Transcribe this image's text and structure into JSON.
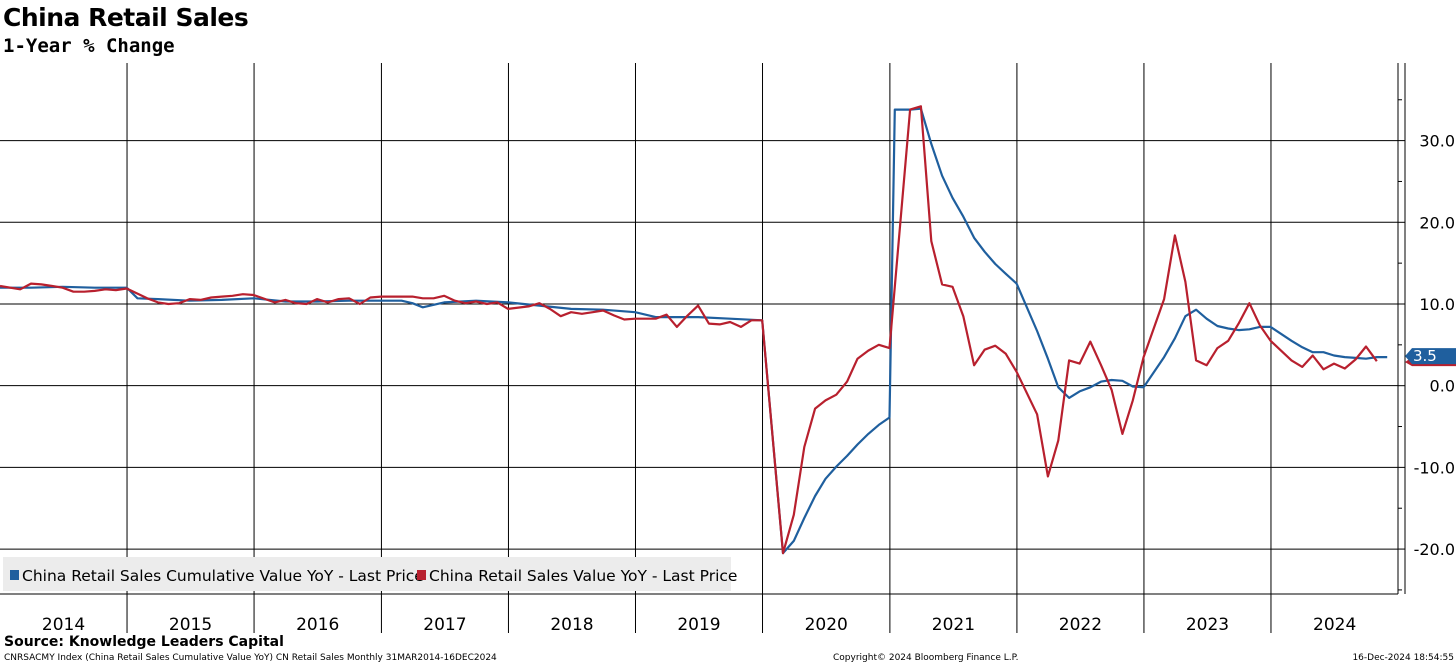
{
  "header": {
    "title": "China Retail Sales",
    "subtitle": "1-Year % Change"
  },
  "footer": {
    "source": "Source: Knowledge Leaders Capital",
    "ticker_line": "CNRSACMY Index (China Retail Sales Cumulative Value YoY) CN Retail Sales  Monthly 31MAR2014-16DEC2024",
    "copyright": "Copyright© 2024 Bloomberg Finance L.P.",
    "timestamp": "16-Dec-2024 18:54:55"
  },
  "colors": {
    "cumulative": "#1f5f9e",
    "monthly": "#b8202e",
    "grid": "#000000",
    "legend_bg": "#ececec"
  },
  "chart_data": {
    "type": "line",
    "x_unit": "date",
    "xlim": [
      "2014-01-01",
      "2024-12-31"
    ],
    "ylim": [
      -25.5,
      39.5
    ],
    "y_ticks": [
      -20,
      -10,
      0,
      10,
      20,
      30
    ],
    "y_tick_labels": [
      "-20.0",
      "-10.0",
      "0.0",
      "10.0",
      "20.0",
      "30.0"
    ],
    "x_tick_labels": [
      "2014",
      "2015",
      "2016",
      "2017",
      "2018",
      "2019",
      "2020",
      "2021",
      "2022",
      "2023",
      "2024"
    ],
    "y_axis_position": "right",
    "grid": true,
    "legend_position": "bottom-left",
    "last_value_label": "3.5",
    "series": [
      {
        "name": "China Retail Sales Cumulative Value YoY - Last Price",
        "color": "#1f5f9e",
        "points": [
          [
            "2014-01-01",
            12.0
          ],
          [
            "2014-03-31",
            12.0
          ],
          [
            "2014-06-30",
            12.1
          ],
          [
            "2014-09-30",
            12.0
          ],
          [
            "2014-12-31",
            12.0
          ],
          [
            "2015-01-31",
            10.7
          ],
          [
            "2015-03-31",
            10.6
          ],
          [
            "2015-06-30",
            10.4
          ],
          [
            "2015-09-30",
            10.5
          ],
          [
            "2015-12-31",
            10.7
          ],
          [
            "2016-03-31",
            10.3
          ],
          [
            "2016-06-30",
            10.3
          ],
          [
            "2016-09-30",
            10.4
          ],
          [
            "2016-12-31",
            10.4
          ],
          [
            "2017-02-28",
            10.4
          ],
          [
            "2017-03-31",
            10.1
          ],
          [
            "2017-04-30",
            9.6
          ],
          [
            "2017-06-30",
            10.2
          ],
          [
            "2017-09-30",
            10.4
          ],
          [
            "2017-12-31",
            10.2
          ],
          [
            "2018-03-31",
            9.8
          ],
          [
            "2018-06-30",
            9.4
          ],
          [
            "2018-09-30",
            9.3
          ],
          [
            "2018-12-31",
            9.0
          ],
          [
            "2019-02-28",
            8.4
          ],
          [
            "2019-06-30",
            8.4
          ],
          [
            "2019-09-30",
            8.2
          ],
          [
            "2019-12-31",
            8.0
          ],
          [
            "2020-02-29",
            -20.5
          ],
          [
            "2020-03-31",
            -19.0
          ],
          [
            "2020-04-30",
            -16.2
          ],
          [
            "2020-05-31",
            -13.5
          ],
          [
            "2020-06-30",
            -11.4
          ],
          [
            "2020-07-31",
            -9.9
          ],
          [
            "2020-08-31",
            -8.6
          ],
          [
            "2020-09-30",
            -7.2
          ],
          [
            "2020-10-31",
            -5.9
          ],
          [
            "2020-11-30",
            -4.8
          ],
          [
            "2020-12-31",
            -3.9
          ],
          [
            "2021-01-15",
            33.8
          ],
          [
            "2021-02-28",
            33.8
          ],
          [
            "2021-03-31",
            33.9
          ],
          [
            "2021-04-30",
            29.6
          ],
          [
            "2021-05-31",
            25.7
          ],
          [
            "2021-06-30",
            23.0
          ],
          [
            "2021-07-31",
            20.7
          ],
          [
            "2021-08-31",
            18.1
          ],
          [
            "2021-09-30",
            16.4
          ],
          [
            "2021-10-31",
            14.9
          ],
          [
            "2021-11-30",
            13.7
          ],
          [
            "2021-12-31",
            12.5
          ],
          [
            "2022-02-28",
            6.7
          ],
          [
            "2022-03-31",
            3.3
          ],
          [
            "2022-04-30",
            -0.2
          ],
          [
            "2022-05-31",
            -1.5
          ],
          [
            "2022-06-30",
            -0.7
          ],
          [
            "2022-07-31",
            -0.2
          ],
          [
            "2022-08-31",
            0.5
          ],
          [
            "2022-09-30",
            0.7
          ],
          [
            "2022-10-31",
            0.6
          ],
          [
            "2022-11-30",
            -0.1
          ],
          [
            "2022-12-31",
            -0.2
          ],
          [
            "2023-02-28",
            3.5
          ],
          [
            "2023-03-31",
            5.8
          ],
          [
            "2023-04-30",
            8.5
          ],
          [
            "2023-05-31",
            9.3
          ],
          [
            "2023-06-30",
            8.2
          ],
          [
            "2023-07-31",
            7.3
          ],
          [
            "2023-08-31",
            7.0
          ],
          [
            "2023-09-30",
            6.8
          ],
          [
            "2023-10-31",
            6.9
          ],
          [
            "2023-11-30",
            7.2
          ],
          [
            "2023-12-31",
            7.2
          ],
          [
            "2024-02-29",
            5.5
          ],
          [
            "2024-03-31",
            4.7
          ],
          [
            "2024-04-30",
            4.1
          ],
          [
            "2024-05-31",
            4.1
          ],
          [
            "2024-06-30",
            3.7
          ],
          [
            "2024-07-31",
            3.5
          ],
          [
            "2024-08-31",
            3.4
          ],
          [
            "2024-09-30",
            3.3
          ],
          [
            "2024-10-31",
            3.5
          ],
          [
            "2024-11-30",
            3.5
          ]
        ]
      },
      {
        "name": "China Retail Sales Value YoY - Last Price",
        "color": "#b8202e",
        "points": [
          [
            "2014-01-01",
            12.2
          ],
          [
            "2014-02-28",
            11.8
          ],
          [
            "2014-03-31",
            12.5
          ],
          [
            "2014-04-30",
            12.4
          ],
          [
            "2014-05-31",
            12.2
          ],
          [
            "2014-06-30",
            12.0
          ],
          [
            "2014-07-31",
            11.5
          ],
          [
            "2014-08-31",
            11.5
          ],
          [
            "2014-09-30",
            11.6
          ],
          [
            "2014-10-31",
            11.8
          ],
          [
            "2014-11-30",
            11.7
          ],
          [
            "2014-12-31",
            11.9
          ],
          [
            "2015-02-28",
            10.7
          ],
          [
            "2015-03-31",
            10.2
          ],
          [
            "2015-04-30",
            10.0
          ],
          [
            "2015-05-31",
            10.1
          ],
          [
            "2015-06-30",
            10.6
          ],
          [
            "2015-07-31",
            10.5
          ],
          [
            "2015-08-31",
            10.8
          ],
          [
            "2015-09-30",
            10.9
          ],
          [
            "2015-10-31",
            11.0
          ],
          [
            "2015-11-30",
            11.2
          ],
          [
            "2015-12-31",
            11.1
          ],
          [
            "2016-02-29",
            10.2
          ],
          [
            "2016-03-31",
            10.5
          ],
          [
            "2016-04-30",
            10.1
          ],
          [
            "2016-05-31",
            10.0
          ],
          [
            "2016-06-30",
            10.6
          ],
          [
            "2016-07-31",
            10.2
          ],
          [
            "2016-08-31",
            10.6
          ],
          [
            "2016-09-30",
            10.7
          ],
          [
            "2016-10-31",
            10.0
          ],
          [
            "2016-11-30",
            10.8
          ],
          [
            "2016-12-31",
            10.9
          ],
          [
            "2017-02-28",
            10.9
          ],
          [
            "2017-03-31",
            10.9
          ],
          [
            "2017-04-30",
            10.7
          ],
          [
            "2017-05-31",
            10.7
          ],
          [
            "2017-06-30",
            11.0
          ],
          [
            "2017-07-31",
            10.4
          ],
          [
            "2017-08-31",
            10.1
          ],
          [
            "2017-09-30",
            10.3
          ],
          [
            "2017-10-31",
            10.0
          ],
          [
            "2017-11-30",
            10.2
          ],
          [
            "2017-12-31",
            9.4
          ],
          [
            "2018-02-28",
            9.7
          ],
          [
            "2018-03-31",
            10.1
          ],
          [
            "2018-04-30",
            9.4
          ],
          [
            "2018-05-31",
            8.5
          ],
          [
            "2018-06-30",
            9.0
          ],
          [
            "2018-07-31",
            8.8
          ],
          [
            "2018-08-31",
            9.0
          ],
          [
            "2018-09-30",
            9.2
          ],
          [
            "2018-10-31",
            8.6
          ],
          [
            "2018-11-30",
            8.1
          ],
          [
            "2018-12-31",
            8.2
          ],
          [
            "2019-02-28",
            8.2
          ],
          [
            "2019-03-31",
            8.7
          ],
          [
            "2019-04-30",
            7.2
          ],
          [
            "2019-05-31",
            8.6
          ],
          [
            "2019-06-30",
            9.8
          ],
          [
            "2019-07-31",
            7.6
          ],
          [
            "2019-08-31",
            7.5
          ],
          [
            "2019-09-30",
            7.8
          ],
          [
            "2019-10-31",
            7.2
          ],
          [
            "2019-11-30",
            8.0
          ],
          [
            "2019-12-31",
            8.0
          ],
          [
            "2020-02-29",
            -20.5
          ],
          [
            "2020-03-31",
            -15.8
          ],
          [
            "2020-04-30",
            -7.5
          ],
          [
            "2020-05-31",
            -2.8
          ],
          [
            "2020-06-30",
            -1.8
          ],
          [
            "2020-07-31",
            -1.1
          ],
          [
            "2020-08-31",
            0.5
          ],
          [
            "2020-09-30",
            3.3
          ],
          [
            "2020-10-31",
            4.3
          ],
          [
            "2020-11-30",
            5.0
          ],
          [
            "2020-12-31",
            4.6
          ],
          [
            "2021-02-28",
            33.8
          ],
          [
            "2021-03-31",
            34.2
          ],
          [
            "2021-04-30",
            17.7
          ],
          [
            "2021-05-31",
            12.4
          ],
          [
            "2021-06-30",
            12.1
          ],
          [
            "2021-07-31",
            8.5
          ],
          [
            "2021-08-31",
            2.5
          ],
          [
            "2021-09-30",
            4.4
          ],
          [
            "2021-10-31",
            4.9
          ],
          [
            "2021-11-30",
            3.9
          ],
          [
            "2021-12-31",
            1.7
          ],
          [
            "2022-02-28",
            -3.5
          ],
          [
            "2022-03-31",
            -11.1
          ],
          [
            "2022-04-30",
            -6.7
          ],
          [
            "2022-05-31",
            3.1
          ],
          [
            "2022-06-30",
            2.7
          ],
          [
            "2022-07-31",
            5.4
          ],
          [
            "2022-08-31",
            2.5
          ],
          [
            "2022-09-30",
            -0.5
          ],
          [
            "2022-10-31",
            -5.9
          ],
          [
            "2022-11-30",
            -1.8
          ],
          [
            "2022-12-31",
            3.5
          ],
          [
            "2023-02-28",
            10.6
          ],
          [
            "2023-03-31",
            18.4
          ],
          [
            "2023-04-30",
            12.7
          ],
          [
            "2023-05-31",
            3.1
          ],
          [
            "2023-06-30",
            2.5
          ],
          [
            "2023-07-31",
            4.6
          ],
          [
            "2023-08-31",
            5.5
          ],
          [
            "2023-09-30",
            7.6
          ],
          [
            "2023-10-31",
            10.1
          ],
          [
            "2023-11-30",
            7.4
          ],
          [
            "2023-12-31",
            5.5
          ],
          [
            "2024-02-29",
            3.1
          ],
          [
            "2024-03-31",
            2.3
          ],
          [
            "2024-04-30",
            3.7
          ],
          [
            "2024-05-31",
            2.0
          ],
          [
            "2024-06-30",
            2.7
          ],
          [
            "2024-07-31",
            2.1
          ],
          [
            "2024-08-31",
            3.2
          ],
          [
            "2024-09-30",
            4.8
          ],
          [
            "2024-10-31",
            3.0
          ]
        ]
      }
    ]
  }
}
